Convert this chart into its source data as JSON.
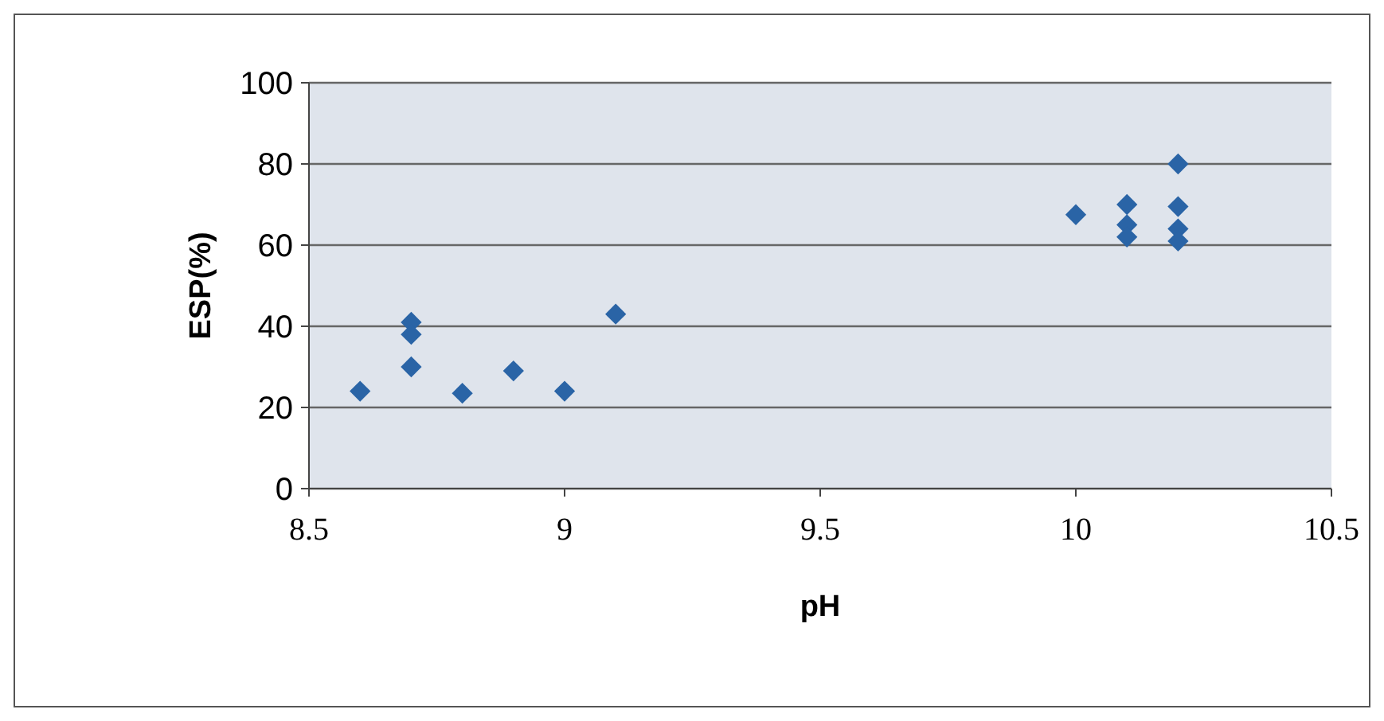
{
  "chart_data": {
    "type": "scatter",
    "xlabel": "pH",
    "ylabel": "ESP(%)",
    "x": [
      8.6,
      8.7,
      8.7,
      8.7,
      8.8,
      8.9,
      9.0,
      9.1,
      10.0,
      10.1,
      10.1,
      10.1,
      10.2,
      10.2,
      10.2,
      10.2
    ],
    "series": [
      {
        "color": "#2a64a6",
        "values": [
          24,
          41,
          38,
          30,
          23.5,
          29,
          24,
          43,
          67.5,
          70,
          65,
          62,
          80,
          69.5,
          64,
          61
        ]
      }
    ],
    "xlim": [
      8.5,
      10.5
    ],
    "xticks": [
      8.5,
      9,
      9.5,
      10,
      10.5
    ],
    "ylim": [
      0,
      100
    ],
    "yticks": [
      0,
      20,
      40,
      60,
      80,
      100
    ],
    "grid": "y",
    "marker": "diamond"
  }
}
